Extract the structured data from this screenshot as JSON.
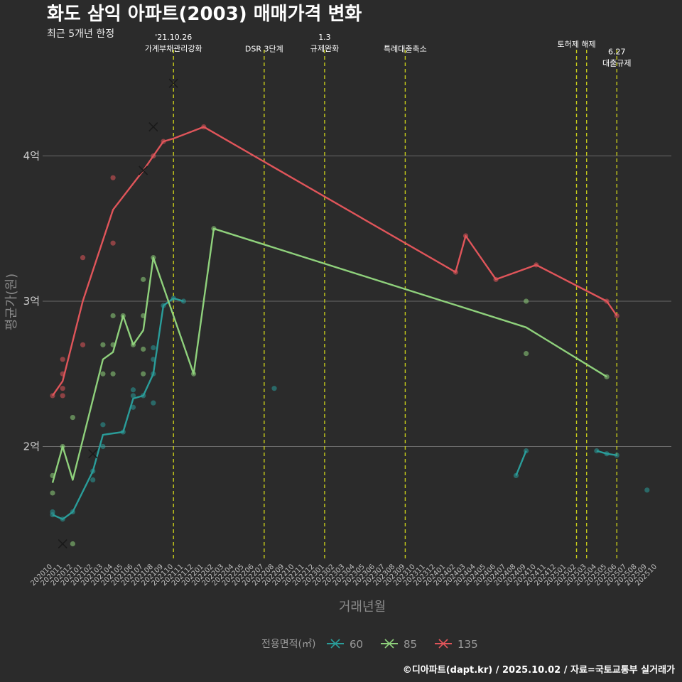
{
  "chart_data": {
    "type": "line",
    "title": "화도 삼익 아파트(2003) 매매가격 변화",
    "subtitle": "최근 5개년 한정",
    "xlabel": "거래년월",
    "ylabel": "평균가(원)",
    "caption": "©디아파트(dapt.kr) / 2025.10.02 / 자료=국토교통부 실거래가",
    "y_ticks": [
      {
        "value": 2,
        "label": "2억"
      },
      {
        "value": 3,
        "label": "3억"
      },
      {
        "value": 4,
        "label": "4억"
      }
    ],
    "ylim": [
      1.2,
      4.95
    ],
    "x_ticks": [
      "202010",
      "202011",
      "202012",
      "202101",
      "202102",
      "202103",
      "202104",
      "202105",
      "202106",
      "202107",
      "202108",
      "202109",
      "202110",
      "202111",
      "202112",
      "202201",
      "202202",
      "202203",
      "202204",
      "202205",
      "202206",
      "202207",
      "202208",
      "202209",
      "202210",
      "202211",
      "202212",
      "202301",
      "202302",
      "202303",
      "202304",
      "202305",
      "202306",
      "202307",
      "202308",
      "202309",
      "202310",
      "202311",
      "202312",
      "202401",
      "202402",
      "202403",
      "202404",
      "202405",
      "202406",
      "202407",
      "202408",
      "202409",
      "202410",
      "202411",
      "202412",
      "202501",
      "202502",
      "202503",
      "202504",
      "202505",
      "202506",
      "202507",
      "202508",
      "202509",
      "202510"
    ],
    "legend_title": "전용면적(㎡)",
    "series": [
      {
        "name": "60",
        "color": "#2a9d9a",
        "line": [
          [
            0,
            1.53
          ],
          [
            1,
            1.5
          ],
          [
            2,
            1.55
          ],
          [
            4,
            1.83
          ],
          [
            5,
            2.08
          ],
          [
            7,
            2.1
          ],
          [
            8,
            2.33
          ],
          [
            9,
            2.35
          ],
          [
            10,
            2.5
          ],
          [
            11,
            2.97
          ],
          [
            12,
            3.02
          ],
          [
            13,
            3.0
          ]
        ],
        "line2": [
          [
            46,
            1.8
          ],
          [
            47,
            1.97
          ]
        ],
        "line3": [
          [
            54,
            1.97
          ],
          [
            55,
            1.95
          ],
          [
            56,
            1.94
          ]
        ],
        "points": [
          [
            0,
            1.53
          ],
          [
            0,
            1.55
          ],
          [
            1,
            1.5
          ],
          [
            2,
            1.55
          ],
          [
            4,
            1.77
          ],
          [
            4,
            1.83
          ],
          [
            5,
            2.0
          ],
          [
            5,
            2.15
          ],
          [
            7,
            2.1
          ],
          [
            8,
            2.27
          ],
          [
            8,
            2.35
          ],
          [
            8,
            2.39
          ],
          [
            9,
            2.35
          ],
          [
            10,
            2.3
          ],
          [
            10,
            2.5
          ],
          [
            10,
            2.6
          ],
          [
            10,
            2.68
          ],
          [
            11,
            2.97
          ],
          [
            12,
            3.02
          ],
          [
            13,
            3.0
          ],
          [
            22,
            2.4
          ],
          [
            46,
            1.8
          ],
          [
            47,
            1.97
          ],
          [
            54,
            1.97
          ],
          [
            55,
            1.95
          ],
          [
            56,
            1.94
          ],
          [
            59,
            1.7
          ]
        ],
        "markers": [
          [
            4,
            1.95
          ]
        ]
      },
      {
        "name": "85",
        "color": "#8fd17c",
        "line": [
          [
            0,
            1.75
          ],
          [
            1,
            2.0
          ],
          [
            2,
            1.77
          ],
          [
            5,
            2.6
          ],
          [
            6,
            2.65
          ],
          [
            7,
            2.9
          ],
          [
            8,
            2.7
          ],
          [
            9,
            2.8
          ],
          [
            10,
            3.3
          ],
          [
            14,
            2.5
          ],
          [
            16,
            3.5
          ],
          [
            47,
            2.82
          ],
          [
            55,
            2.48
          ]
        ],
        "points": [
          [
            0,
            1.8
          ],
          [
            0,
            1.68
          ],
          [
            1,
            2.0
          ],
          [
            2,
            2.2
          ],
          [
            2,
            1.33
          ],
          [
            5,
            2.7
          ],
          [
            5,
            2.5
          ],
          [
            6,
            2.5
          ],
          [
            6,
            2.9
          ],
          [
            6,
            2.7
          ],
          [
            7,
            2.9
          ],
          [
            8,
            2.7
          ],
          [
            9,
            3.15
          ],
          [
            9,
            2.9
          ],
          [
            9,
            2.67
          ],
          [
            9,
            2.5
          ],
          [
            10,
            3.3
          ],
          [
            14,
            2.5
          ],
          [
            16,
            3.5
          ],
          [
            47,
            3.0
          ],
          [
            47,
            2.64
          ],
          [
            55,
            2.48
          ]
        ],
        "markers": [
          [
            1,
            1.33
          ]
        ]
      },
      {
        "name": "135",
        "color": "#e0555a",
        "line": [
          [
            0,
            2.35
          ],
          [
            1,
            2.45
          ],
          [
            3,
            3.0
          ],
          [
            6,
            3.63
          ],
          [
            9,
            3.9
          ],
          [
            10,
            4.0
          ],
          [
            11,
            4.1
          ],
          [
            12,
            4.12
          ],
          [
            15,
            4.2
          ],
          [
            40,
            3.2
          ],
          [
            41,
            3.45
          ],
          [
            44,
            3.15
          ],
          [
            48,
            3.25
          ],
          [
            55,
            3.0
          ],
          [
            56,
            2.9
          ]
        ],
        "points": [
          [
            0,
            2.35
          ],
          [
            1,
            2.35
          ],
          [
            1,
            2.4
          ],
          [
            1,
            2.5
          ],
          [
            1,
            2.6
          ],
          [
            3,
            3.3
          ],
          [
            3,
            2.7
          ],
          [
            6,
            3.85
          ],
          [
            6,
            3.4
          ],
          [
            10,
            4.0
          ],
          [
            11,
            4.1
          ],
          [
            15,
            4.2
          ],
          [
            40,
            3.2
          ],
          [
            41,
            3.45
          ],
          [
            44,
            3.15
          ],
          [
            48,
            3.25
          ],
          [
            55,
            3.0
          ],
          [
            56,
            2.9
          ]
        ],
        "markers": [
          [
            9,
            3.9
          ],
          [
            10,
            4.2
          ],
          [
            12,
            4.5
          ]
        ]
      }
    ],
    "events": [
      {
        "x": 12,
        "lines": [
          "'21.10.26",
          "가계부채관리강화"
        ],
        "label_y": 4.8
      },
      {
        "x": 21,
        "lines": [
          "DSR 3단계"
        ],
        "label_y": 4.72
      },
      {
        "x": 27,
        "lines": [
          "1.3",
          "규제완화"
        ],
        "label_y": 4.8
      },
      {
        "x": 35,
        "lines": [
          "특례대출축소"
        ],
        "label_y": 4.72
      },
      {
        "x": 52,
        "lines": [
          "토허제 해제"
        ],
        "label_y": 4.75
      },
      {
        "x": 53,
        "lines": [],
        "label_y": 4.75
      },
      {
        "x": 56,
        "lines": [
          "6.27",
          "대출규제"
        ],
        "label_y": 4.7
      }
    ]
  }
}
